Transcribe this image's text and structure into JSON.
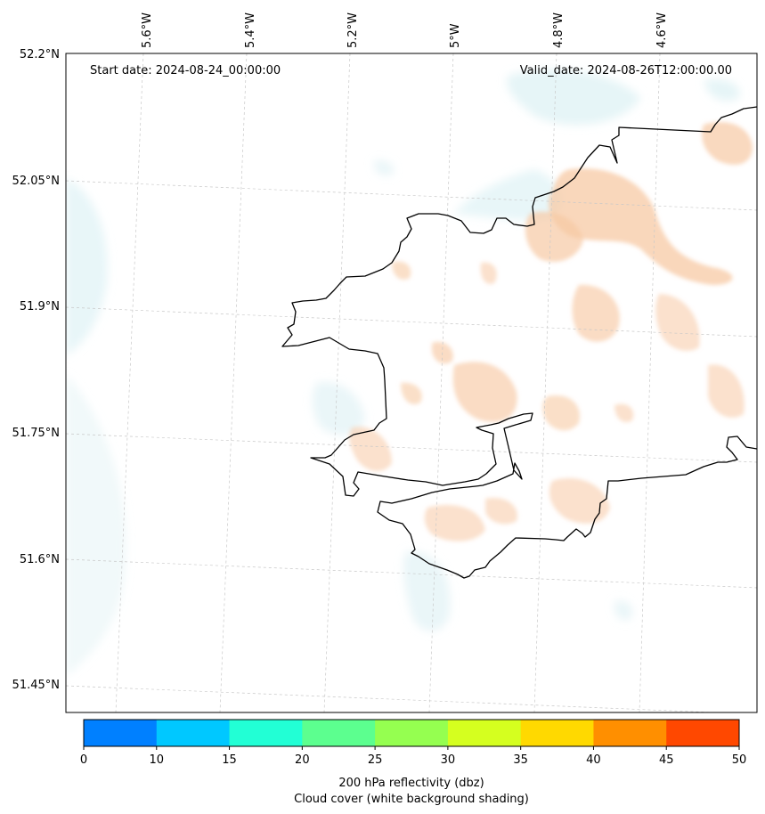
{
  "header": {
    "start_date": "Start date: 2024-08-24_00:00:00",
    "valid_date": "Valid_date: 2024-08-26T12:00:00.00"
  },
  "longitude_labels": [
    "5.6°W",
    "5.4°W",
    "5.2°W",
    "5°W",
    "4.8°W",
    "4.6°W"
  ],
  "latitude_labels": [
    "52.2°N",
    "52.05°N",
    "51.9°N",
    "51.75°N",
    "51.6°N",
    "51.45°N"
  ],
  "colorbar": {
    "ticks": [
      "0",
      "10",
      "15",
      "20",
      "25",
      "30",
      "35",
      "40",
      "45",
      "50"
    ],
    "colors": [
      "#0080ff",
      "#00c8ff",
      "#22ffd5",
      "#5cff8f",
      "#95ff50",
      "#d5ff1f",
      "#ffd900",
      "#ff8f00",
      "#ff4800"
    ],
    "label_line1": "200 hPa reflectivity (dbz)",
    "label_line2": "Cloud cover (white background shading)"
  },
  "colors": {
    "coastline": "#000000",
    "gridline": "#c8c8c8",
    "cloud_shading": "#d6eef2",
    "reflectivity_shading": "#f7c9a4"
  }
}
